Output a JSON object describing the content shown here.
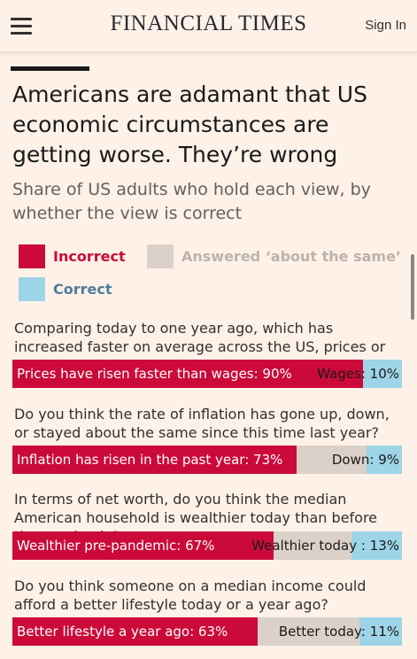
{
  "header": {
    "brand": "FINANCIAL TIMES",
    "sign_in": "Sign In"
  },
  "colors": {
    "incorrect": "#cc0a3a",
    "same": "#dcd1c9",
    "correct": "#9ed4e8"
  },
  "chart_data": {
    "type": "bar",
    "orientation": "horizontal-stacked",
    "title": "Americans are adamant that US economic circumstances are getting worse. They’re wrong",
    "subtitle": "Share of US adults who hold each view, by whether the view is correct",
    "legend": [
      {
        "key": "incorrect",
        "label": "Incorrect"
      },
      {
        "key": "same",
        "label": "Answered ‘about the same’"
      },
      {
        "key": "correct",
        "label": "Correct"
      }
    ],
    "items": [
      {
        "question": "Comparing today to one year ago, which has increased faster on average across the US, prices or wages?",
        "incorrect": 90,
        "same": 0,
        "correct": 10,
        "incorrect_label": "Prices have risen faster than wages: 90%",
        "correct_label": "Wages: 10%"
      },
      {
        "question": "Do you think the rate of inflation has gone up, down, or stayed about the same since this time last year?",
        "incorrect": 73,
        "same": 18,
        "correct": 9,
        "incorrect_label": "Inflation has risen in the past year: 73%",
        "correct_label": "Down: 9%"
      },
      {
        "question": "In terms of net worth, do you think the median American household is wealthier today than before the pandemic?",
        "incorrect": 67,
        "same": 20,
        "correct": 13,
        "incorrect_label": "Wealthier pre-pandemic: 67%",
        "correct_label": "Wealthier today : 13%"
      },
      {
        "question": "Do you think someone on a median income could afford a better lifestyle today or a year ago?",
        "incorrect": 63,
        "same": 26,
        "correct": 11,
        "incorrect_label": "Better lifestyle a year ago: 63%",
        "correct_label": "Better today: 11%"
      }
    ]
  }
}
